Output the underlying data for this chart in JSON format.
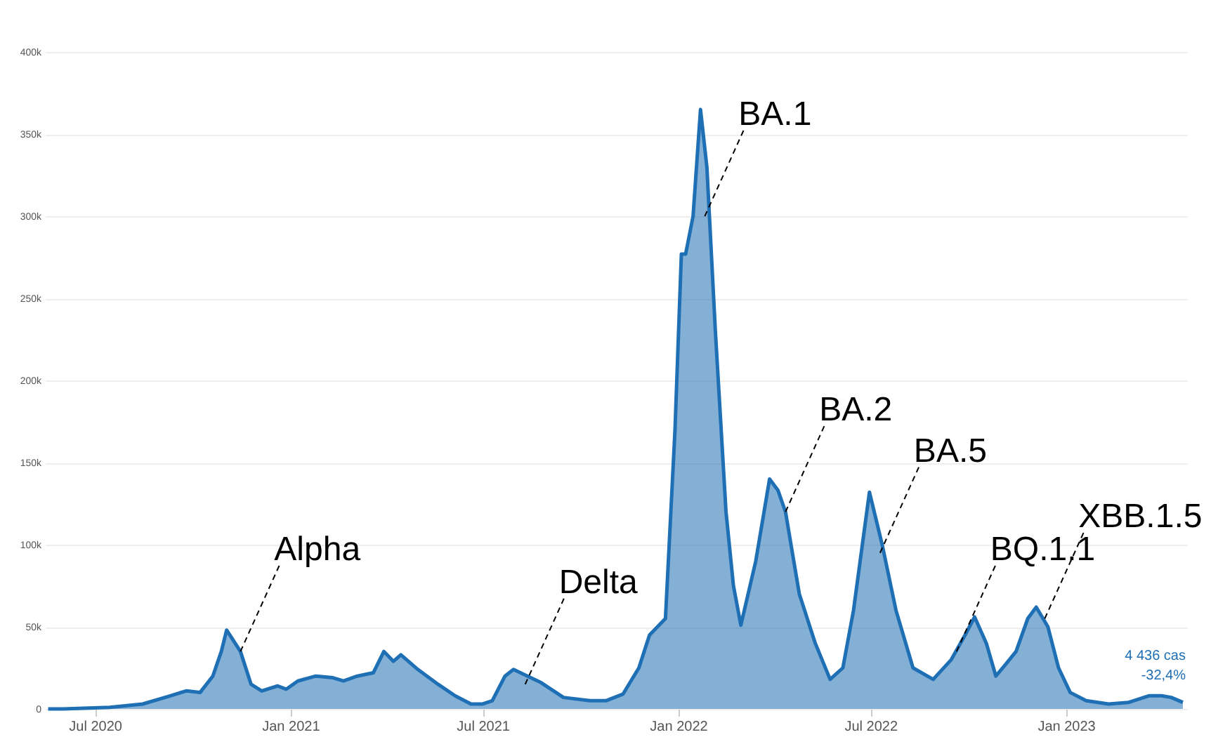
{
  "chart_data": {
    "type": "area",
    "x": [
      "2020-05-18",
      "2020-06-01",
      "2020-07-15",
      "2020-08-15",
      "2020-09-10",
      "2020-09-25",
      "2020-10-08",
      "2020-10-20",
      "2020-10-28",
      "2020-11-02",
      "2020-11-15",
      "2020-11-25",
      "2020-12-05",
      "2020-12-20",
      "2020-12-28",
      "2021-01-08",
      "2021-01-25",
      "2021-02-10",
      "2021-02-20",
      "2021-03-05",
      "2021-03-20",
      "2021-03-30",
      "2021-04-08",
      "2021-04-15",
      "2021-05-01",
      "2021-05-20",
      "2021-06-05",
      "2021-06-20",
      "2021-07-01",
      "2021-07-10",
      "2021-07-22",
      "2021-07-30",
      "2021-08-25",
      "2021-09-15",
      "2021-10-10",
      "2021-10-25",
      "2021-11-10",
      "2021-11-25",
      "2021-12-05",
      "2021-12-20",
      "2021-12-29",
      "2022-01-04",
      "2022-01-08",
      "2022-01-15",
      "2022-01-22",
      "2022-01-28",
      "2022-02-05",
      "2022-02-15",
      "2022-02-22",
      "2022-03-01",
      "2022-03-15",
      "2022-03-28",
      "2022-04-05",
      "2022-04-12",
      "2022-04-25",
      "2022-05-10",
      "2022-05-24",
      "2022-06-05",
      "2022-06-15",
      "2022-06-30",
      "2022-07-12",
      "2022-07-25",
      "2022-08-10",
      "2022-08-29",
      "2022-09-15",
      "2022-09-28",
      "2022-10-07",
      "2022-10-18",
      "2022-10-27",
      "2022-11-05",
      "2022-11-15",
      "2022-11-26",
      "2022-12-04",
      "2022-12-15",
      "2022-12-25",
      "2023-01-05",
      "2023-01-20",
      "2023-02-10",
      "2023-03-01",
      "2023-03-20",
      "2023-04-01",
      "2023-04-10",
      "2023-04-21"
    ],
    "series": [
      {
        "color": "#1f6fb5",
        "values": [
          0,
          0,
          1000,
          3000,
          8000,
          11000,
          10000,
          20000,
          35000,
          48000,
          35000,
          15000,
          11000,
          14000,
          12000,
          17000,
          20000,
          19000,
          17000,
          20000,
          22000,
          35000,
          29000,
          33000,
          24000,
          15000,
          8000,
          3000,
          3000,
          5000,
          20000,
          24000,
          16000,
          7000,
          5000,
          5000,
          9000,
          25000,
          45000,
          55000,
          170000,
          277000,
          277000,
          300000,
          365000,
          330000,
          230000,
          120000,
          75000,
          51000,
          90000,
          140000,
          133000,
          120000,
          70000,
          40000,
          18000,
          25000,
          60000,
          132000,
          100000,
          60000,
          25000,
          18000,
          30000,
          45000,
          56000,
          40000,
          20000,
          27000,
          35000,
          55000,
          62000,
          50000,
          25000,
          10000,
          5000,
          3000,
          4000,
          8000,
          8000,
          7000,
          4000
        ]
      }
    ],
    "xlim": [
      "2020-05-15",
      "2023-04-25"
    ],
    "xticks": [
      {
        "value": "2020-07-01",
        "label": "Jul 2020"
      },
      {
        "value": "2021-01-01",
        "label": "Jan 2021"
      },
      {
        "value": "2021-07-01",
        "label": "Jul 2021"
      },
      {
        "value": "2022-01-01",
        "label": "Jan 2022"
      },
      {
        "value": "2022-07-01",
        "label": "Jul 2022"
      },
      {
        "value": "2023-01-01",
        "label": "Jan 2023"
      }
    ],
    "ylim": [
      0,
      430000
    ],
    "yticks": [
      {
        "value": 0,
        "label": "0"
      },
      {
        "value": 50000,
        "label": "50k"
      },
      {
        "value": 100000,
        "label": "100k"
      },
      {
        "value": 150000,
        "label": "150k"
      },
      {
        "value": 200000,
        "label": "200k"
      },
      {
        "value": 250000,
        "label": "250k"
      },
      {
        "value": 300000,
        "label": "300k"
      },
      {
        "value": 350000,
        "label": "350k"
      },
      {
        "value": 400000,
        "label": "400k"
      }
    ],
    "grid": "y",
    "annotations": [
      {
        "text": "Alpha",
        "x": "2020-11-15",
        "y": 35000
      },
      {
        "text": "Delta",
        "x": "2021-08-10",
        "y": 15000
      },
      {
        "text": "BA.1",
        "x": "2022-01-26",
        "y": 300000
      },
      {
        "text": "BA.2",
        "x": "2022-04-12",
        "y": 120000
      },
      {
        "text": "BA.5",
        "x": "2022-07-10",
        "y": 95000
      },
      {
        "text": "BQ.1.1",
        "x": "2022-09-20",
        "y": 35000
      },
      {
        "text": "XBB.1.5",
        "x": "2022-12-12",
        "y": 55000
      },
      "4 436 cas\n-32,4%"
    ]
  }
}
